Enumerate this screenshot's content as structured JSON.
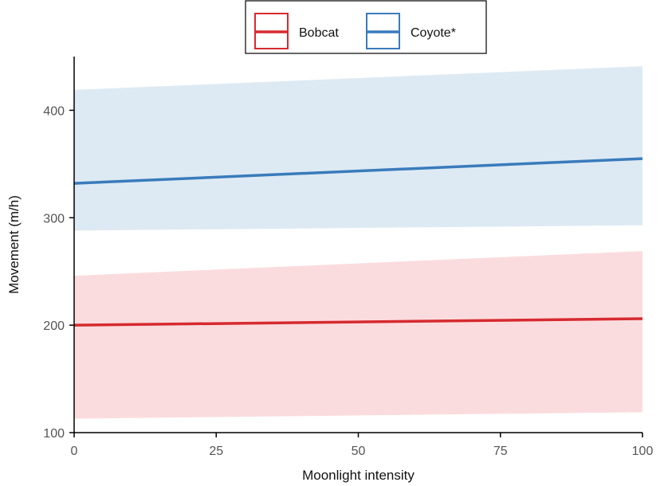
{
  "chart_data": {
    "type": "line",
    "title": "",
    "xlabel": "Moonlight intensity",
    "ylabel": "Movement (m/h)",
    "xlim": [
      0,
      100
    ],
    "ylim": [
      100,
      450
    ],
    "x_ticks": [
      0,
      25,
      50,
      75,
      100
    ],
    "y_ticks": [
      100,
      200,
      300,
      400
    ],
    "grid": false,
    "legend_position": "top-center",
    "series": [
      {
        "name": "Bobcat",
        "color": "#d62a2f",
        "band_color": "#f4a7ad",
        "x": [
          0,
          100
        ],
        "y": [
          200,
          206
        ],
        "lower": [
          113,
          119
        ],
        "upper": [
          246,
          269
        ]
      },
      {
        "name": "Coyote*",
        "color": "#3a7bbb",
        "band_color": "#a9cbe4",
        "x": [
          0,
          100
        ],
        "y": [
          332,
          355
        ],
        "lower": [
          288,
          293
        ],
        "upper": [
          419,
          441
        ]
      }
    ]
  }
}
